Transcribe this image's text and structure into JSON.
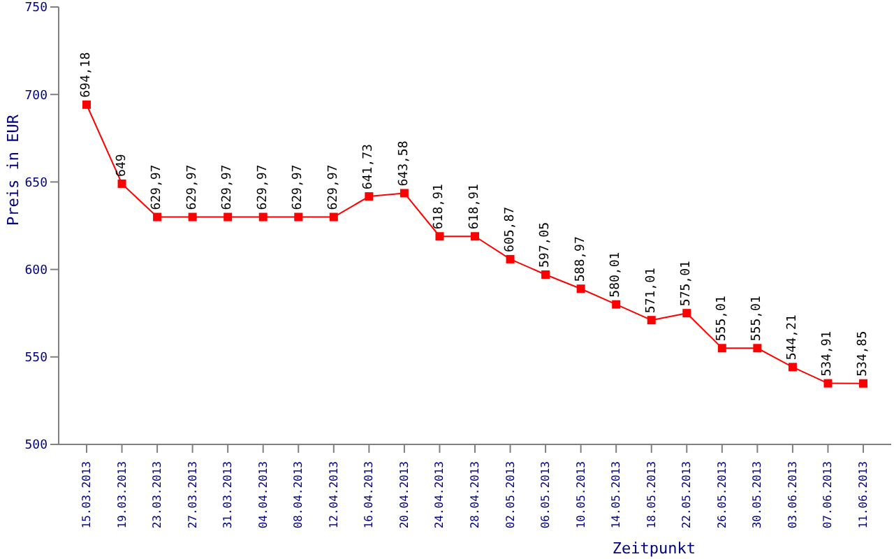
{
  "chart_data": {
    "type": "line",
    "xlabel": "Zeitpunkt",
    "ylabel": "Preis in EUR",
    "categories": [
      "15.03.2013",
      "19.03.2013",
      "23.03.2013",
      "27.03.2013",
      "31.03.2013",
      "04.04.2013",
      "08.04.2013",
      "12.04.2013",
      "16.04.2013",
      "20.04.2013",
      "24.04.2013",
      "28.04.2013",
      "02.05.2013",
      "06.05.2013",
      "10.05.2013",
      "14.05.2013",
      "18.05.2013",
      "22.05.2013",
      "26.05.2013",
      "30.05.2013",
      "03.06.2013",
      "07.06.2013",
      "11.06.2013"
    ],
    "series": [
      {
        "color": "#ff0000",
        "values": [
          694.18,
          649,
          629.97,
          629.97,
          629.97,
          629.97,
          629.97,
          629.97,
          641.73,
          643.58,
          618.91,
          618.91,
          605.87,
          597.05,
          588.97,
          580.01,
          571.01,
          575.01,
          555.01,
          555.01,
          544.21,
          534.91,
          534.85
        ],
        "value_labels": [
          "694,18",
          "649",
          "629,97",
          "629,97",
          "629,97",
          "629,97",
          "629,97",
          "629,97",
          "641,73",
          "643,58",
          "618,91",
          "618,91",
          "605,87",
          "597,05",
          "588,97",
          "580,01",
          "571,01",
          "575,01",
          "555,01",
          "555,01",
          "544,21",
          "534,91",
          "534,85"
        ]
      }
    ],
    "ylim": [
      500,
      750
    ],
    "yticks": [
      500,
      550,
      600,
      650,
      700,
      750
    ],
    "grid": false,
    "legend": false,
    "marker": "square",
    "line_style": "solid"
  }
}
